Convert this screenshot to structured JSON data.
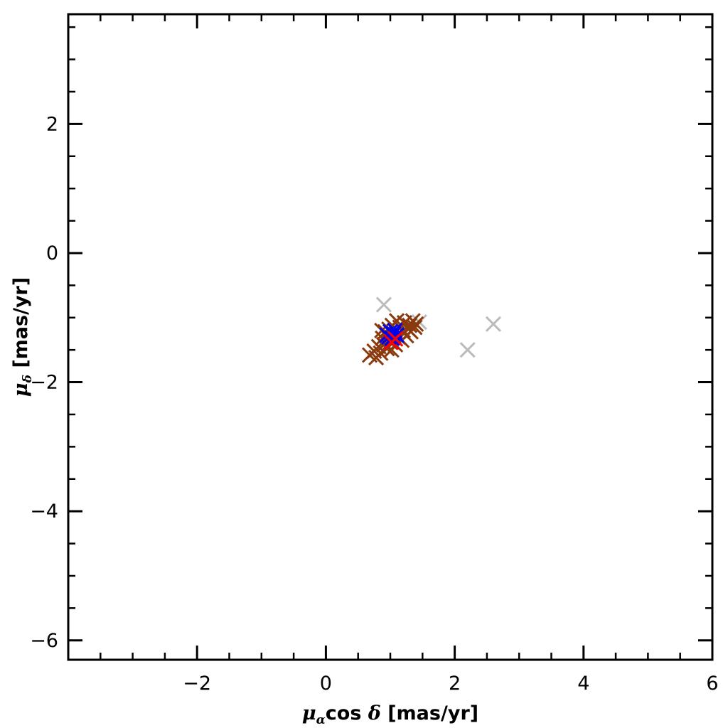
{
  "chart_data": {
    "type": "scatter",
    "xlabel": {
      "mu": "μ",
      "sub": "α",
      "mid": "cos ",
      "delta": "δ",
      "units": " [mas/yr]"
    },
    "ylabel": {
      "mu": "μ",
      "sub": "δ",
      "units": " [mas/yr]"
    },
    "xlim": [
      -4,
      6
    ],
    "ylim": [
      -6.3,
      3.7
    ],
    "x_ticks": [
      -2,
      0,
      2,
      4,
      6
    ],
    "x_tick_labels": [
      "−2",
      "0",
      "2",
      "4",
      "6"
    ],
    "y_ticks": [
      -6,
      -4,
      -2,
      0,
      2
    ],
    "y_tick_labels": [
      "−6",
      "−4",
      "−2",
      "0",
      "2"
    ],
    "x_minor_step": 0.5,
    "y_minor_step": 0.5,
    "grid": false,
    "series": [
      {
        "marker": "cross",
        "color": "#bbbbbb",
        "points": [
          [
            0.9,
            -0.8
          ],
          [
            2.2,
            -1.5
          ],
          [
            2.6,
            -1.1
          ],
          [
            1.45,
            -1.07
          ]
        ]
      },
      {
        "marker": "cross",
        "color": "#8b3a0e",
        "points": [
          [
            0.68,
            -1.58
          ],
          [
            0.75,
            -1.52
          ],
          [
            0.78,
            -1.62
          ],
          [
            0.82,
            -1.45
          ],
          [
            0.85,
            -1.55
          ],
          [
            0.88,
            -1.32
          ],
          [
            0.9,
            -1.42
          ],
          [
            0.92,
            -1.22
          ],
          [
            0.95,
            -1.48
          ],
          [
            0.96,
            -1.3
          ],
          [
            0.98,
            -1.18
          ],
          [
            1.0,
            -1.38
          ],
          [
            1.03,
            -1.12
          ],
          [
            1.05,
            -1.25
          ],
          [
            1.08,
            -1.42
          ],
          [
            1.1,
            -1.05
          ],
          [
            1.12,
            -1.3
          ],
          [
            1.15,
            -1.15
          ],
          [
            1.18,
            -1.35
          ],
          [
            1.2,
            -1.2
          ],
          [
            1.22,
            -1.08
          ],
          [
            1.25,
            -1.28
          ],
          [
            1.28,
            -1.18
          ],
          [
            1.3,
            -1.12
          ],
          [
            1.32,
            -1.22
          ],
          [
            1.35,
            -1.05
          ],
          [
            1.38,
            -1.15
          ],
          [
            1.4,
            -1.1
          ],
          [
            0.87,
            -1.2
          ],
          [
            1.02,
            -1.5
          ]
        ]
      },
      {
        "marker": "cross",
        "color": "#0000ee",
        "points": [
          [
            0.95,
            -1.27
          ],
          [
            1.0,
            -1.22
          ],
          [
            1.03,
            -1.32
          ],
          [
            1.07,
            -1.2
          ],
          [
            1.1,
            -1.27
          ],
          [
            0.98,
            -1.3
          ],
          [
            1.05,
            -1.25
          ]
        ]
      },
      {
        "marker": "cross",
        "color": "#ff0000",
        "points": [
          [
            1.02,
            -1.38
          ],
          [
            1.08,
            -1.33
          ]
        ]
      }
    ]
  }
}
